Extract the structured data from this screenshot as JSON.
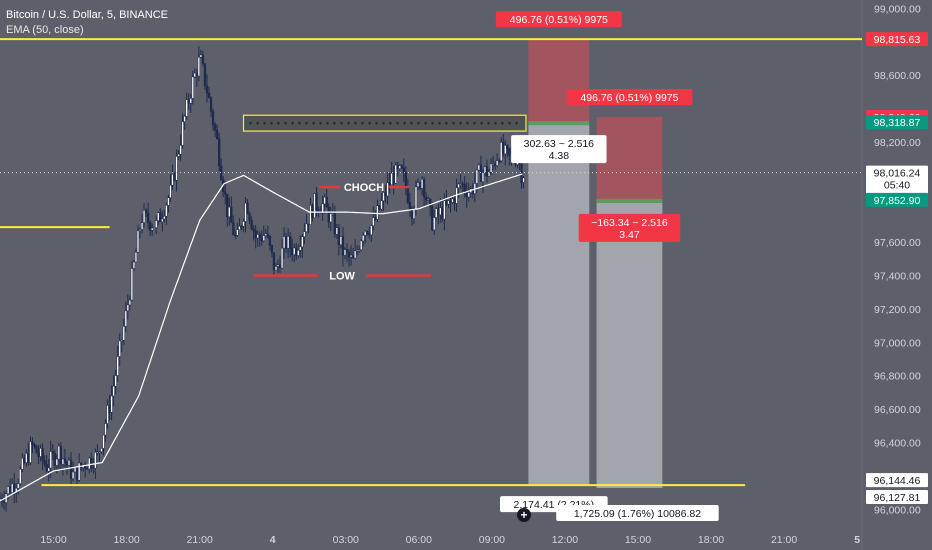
{
  "legend": {
    "symbol_line": "Bitcoin / U.S. Dollar, 5, BINANCE",
    "indicator_line": "EMA (50, close)"
  },
  "colors": {
    "background": "#5d606b",
    "candle": "#1f2b4d",
    "ema": "#ffffff",
    "level_line": "#ffeb3b",
    "profit_zone": "#a3a5ac",
    "loss_zone": "#a2555f",
    "stop_bar": "#5c9c5e",
    "red_label": "#f23645",
    "green_label": "#089981",
    "annotation_red": "#e53935"
  },
  "chart_data": {
    "type": "candlestick",
    "symbol": "Bitcoin / U.S. Dollar",
    "interval": "5",
    "exchange": "BINANCE",
    "indicator": "EMA (50, close)",
    "y_range": [
      95900,
      99050
    ],
    "y_ticks": [
      "99,000.00",
      "98,600.00",
      "98,200.00",
      "97,600.00",
      "97,400.00",
      "97,200.00",
      "97,000.00",
      "96,800.00",
      "96,600.00",
      "96,400.00",
      "96,200.00",
      "96,000.00"
    ],
    "y_tick_values": [
      99000,
      98600,
      98200,
      97600,
      97400,
      97200,
      97000,
      96800,
      96600,
      96400,
      96200,
      96000
    ],
    "x_ticks": [
      "15:00",
      "18:00",
      "21:00",
      "4",
      "03:00",
      "06:00",
      "09:00",
      "12:00",
      "15:00",
      "18:00",
      "21:00",
      "5"
    ],
    "time_start_hours": 12.8,
    "time_end_hours": 48.2,
    "x_tick_hours": [
      15,
      18,
      21,
      24,
      27,
      30,
      33,
      36,
      39,
      42,
      45,
      48
    ],
    "price_path": [
      [
        12.8,
        96050
      ],
      [
        13.6,
        96180
      ],
      [
        14.2,
        96380
      ],
      [
        14.8,
        96260
      ],
      [
        15.3,
        96350
      ],
      [
        15.9,
        96200
      ],
      [
        16.4,
        96280
      ],
      [
        16.9,
        96320
      ],
      [
        17.5,
        96700
      ],
      [
        18.1,
        97200
      ],
      [
        18.7,
        97750
      ],
      [
        19.3,
        97700
      ],
      [
        19.9,
        97900
      ],
      [
        20.4,
        98300
      ],
      [
        20.8,
        98560
      ],
      [
        21.1,
        98700
      ],
      [
        21.4,
        98500
      ],
      [
        21.8,
        98200
      ],
      [
        22.2,
        97800
      ],
      [
        22.6,
        97600
      ],
      [
        23.0,
        97850
      ],
      [
        23.4,
        97620
      ],
      [
        23.8,
        97650
      ],
      [
        24.2,
        97420
      ],
      [
        24.6,
        97600
      ],
      [
        25.0,
        97550
      ],
      [
        25.4,
        97700
      ],
      [
        25.8,
        97830
      ],
      [
        26.2,
        97820
      ],
      [
        26.6,
        97700
      ],
      [
        27.0,
        97530
      ],
      [
        27.4,
        97480
      ],
      [
        27.8,
        97680
      ],
      [
        28.2,
        97700
      ],
      [
        28.6,
        97850
      ],
      [
        29.0,
        98000
      ],
      [
        29.4,
        98010
      ],
      [
        29.8,
        97800
      ],
      [
        30.2,
        98000
      ],
      [
        30.6,
        97720
      ],
      [
        31.0,
        97780
      ],
      [
        31.4,
        97830
      ],
      [
        31.8,
        97950
      ],
      [
        32.2,
        97900
      ],
      [
        32.6,
        98020
      ],
      [
        33.0,
        98020
      ],
      [
        33.4,
        98150
      ],
      [
        33.8,
        98100
      ],
      [
        34.2,
        98120
      ],
      [
        34.3,
        98016
      ]
    ],
    "ema_path": [
      [
        12.8,
        96050
      ],
      [
        15.0,
        96230
      ],
      [
        17.0,
        96280
      ],
      [
        18.5,
        96680
      ],
      [
        19.8,
        97250
      ],
      [
        21.0,
        97730
      ],
      [
        22.0,
        97950
      ],
      [
        22.8,
        98000
      ],
      [
        24.0,
        97900
      ],
      [
        25.5,
        97780
      ],
      [
        27.0,
        97780
      ],
      [
        28.5,
        97770
      ],
      [
        30.0,
        97800
      ],
      [
        31.5,
        97880
      ],
      [
        33.0,
        97950
      ],
      [
        34.3,
        98010
      ]
    ],
    "last_price": 98016.24,
    "countdown": "05:40",
    "horizontal_levels": [
      {
        "price": 98815.63,
        "t_from": 12.8,
        "t_to": 48.2
      },
      {
        "price": 96144.46,
        "t_from": 14.5,
        "t_to": 43.4
      },
      {
        "price": 97690,
        "t_from": 12.8,
        "t_to": 17.3
      }
    ],
    "zone_box": {
      "t_from": 22.8,
      "t_to": 34.4,
      "price_top": 98360,
      "price_bottom": 98265
    },
    "positions": [
      {
        "t_from": 34.5,
        "t_to": 37.0,
        "entry": 98318.87,
        "stop": 98815.63,
        "target": 96144.46,
        "stop_label": "496.76 (0.51%) 9975",
        "info_label": "302.63 ~ 2.516",
        "info_sub": "4.38",
        "target_label": "2,174.41 (2.21%)"
      },
      {
        "t_from": 37.3,
        "t_to": 40.0,
        "entry": 97852.9,
        "stop": 98349.66,
        "target": 96127.81,
        "stop_label": "496.76 (0.51%) 9975",
        "info_label": "−163.34 ~ 2.516",
        "info_sub": "3.47",
        "target_label": "1,725.09 (1.76%) 10086.82"
      }
    ],
    "annotations": [
      {
        "text": "CHOCH",
        "price": 97930,
        "t_from": 25.9,
        "t_to": 29.6
      },
      {
        "text": "LOW",
        "price": 97400,
        "t_from": 23.2,
        "t_to": 30.5
      }
    ],
    "price_labels": [
      {
        "text": "98,815.63",
        "price": 98815.63,
        "kind": "red"
      },
      {
        "text": "98,349.66",
        "price": 98349.66,
        "kind": "red"
      },
      {
        "text": "98,318.87",
        "price": 98318.87,
        "kind": "green"
      },
      {
        "text": "98,016.24",
        "price": 98016.24,
        "kind": "last"
      },
      {
        "text": "97,852.90",
        "price": 97852.9,
        "kind": "green"
      },
      {
        "text": "96,144.46",
        "price": 96144.46,
        "kind": "white"
      },
      {
        "text": "96,127.81",
        "price": 96127.81,
        "kind": "white"
      }
    ]
  }
}
